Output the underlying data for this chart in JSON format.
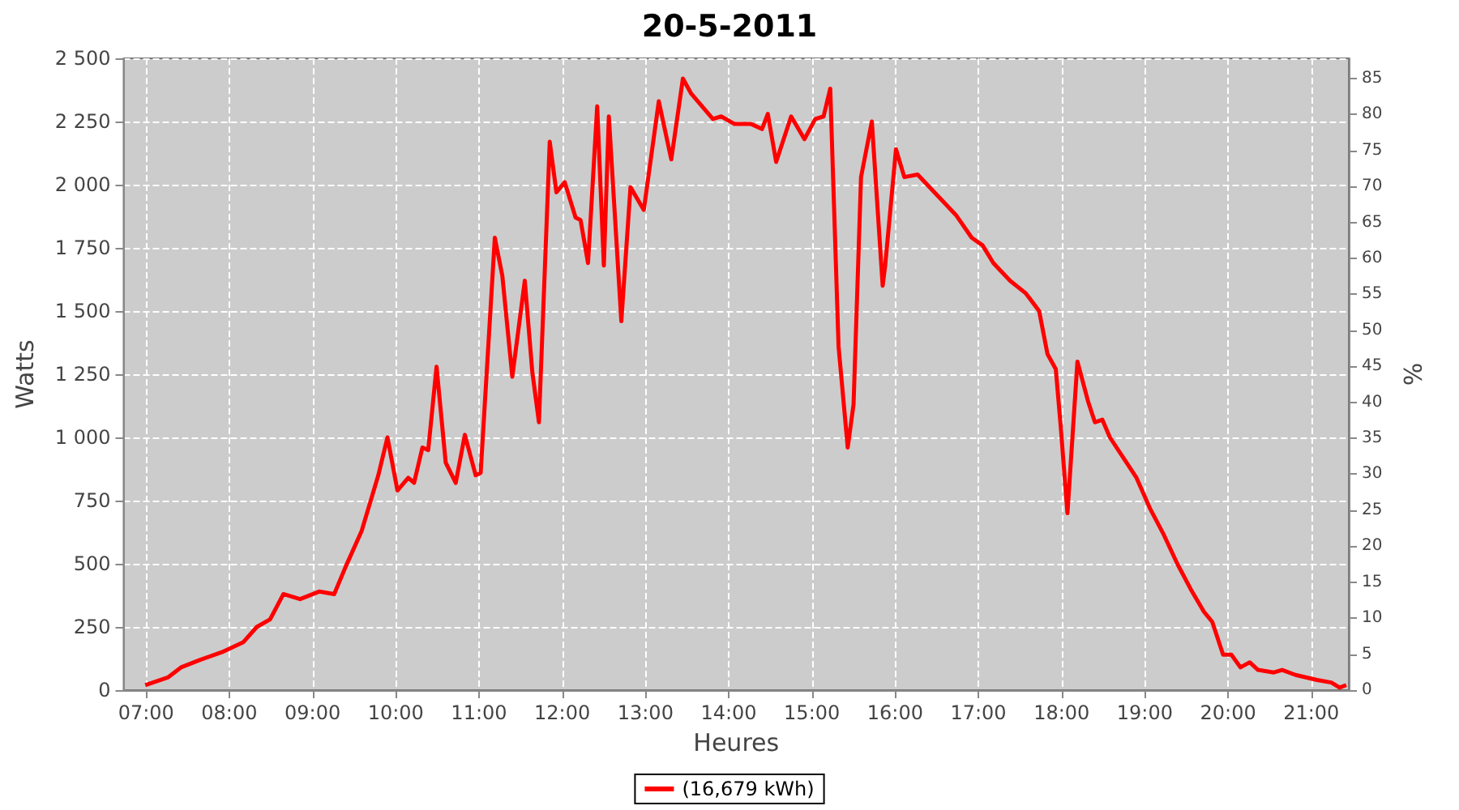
{
  "chart_data": {
    "type": "line",
    "title": "20-5-2011",
    "xlabel": "Heures",
    "ylabel": "Watts",
    "y2label": "%",
    "x": [
      6.99,
      7.26,
      7.42,
      7.65,
      7.91,
      8.17,
      8.33,
      8.49,
      8.65,
      8.85,
      9.08,
      9.26,
      9.4,
      9.59,
      9.79,
      9.9,
      10.02,
      10.15,
      10.22,
      10.32,
      10.39,
      10.49,
      10.6,
      10.72,
      10.83,
      10.96,
      11.02,
      11.19,
      11.28,
      11.4,
      11.55,
      11.64,
      11.72,
      11.85,
      11.93,
      12.03,
      12.16,
      12.22,
      12.31,
      12.42,
      12.5,
      12.56,
      12.71,
      12.82,
      12.98,
      13.16,
      13.31,
      13.45,
      13.55,
      13.81,
      13.91,
      14.07,
      14.27,
      14.4,
      14.47,
      14.57,
      14.75,
      14.91,
      15.04,
      15.14,
      15.22,
      15.32,
      15.43,
      15.5,
      15.59,
      15.72,
      15.85,
      15.88,
      16.01,
      16.11,
      16.27,
      16.5,
      16.73,
      16.92,
      17.05,
      17.18,
      17.38,
      17.57,
      17.73,
      17.83,
      17.93,
      17.99,
      18.07,
      18.19,
      18.32,
      18.4,
      18.49,
      18.58,
      18.74,
      18.9,
      19.06,
      19.22,
      19.39,
      19.55,
      19.71,
      19.81,
      19.94,
      20.04,
      20.15,
      20.26,
      20.36,
      20.55,
      20.65,
      20.81,
      21.07,
      21.24,
      21.34,
      21.42
    ],
    "series": [
      {
        "name": "(16,679 kWh)",
        "color": "#ff0000",
        "values": [
          20,
          50,
          90,
          120,
          150,
          190,
          250,
          280,
          380,
          360,
          390,
          380,
          490,
          630,
          850,
          1000,
          790,
          840,
          820,
          960,
          950,
          1280,
          900,
          820,
          1010,
          850,
          860,
          1790,
          1640,
          1240,
          1620,
          1260,
          1060,
          2170,
          1970,
          2010,
          1870,
          1860,
          1690,
          2310,
          1680,
          2270,
          1460,
          1990,
          1900,
          2330,
          2100,
          2420,
          2360,
          2260,
          2270,
          2240,
          2240,
          2220,
          2280,
          2090,
          2270,
          2180,
          2260,
          2270,
          2380,
          1360,
          960,
          1130,
          2030,
          2250,
          1600,
          1680,
          2140,
          2030,
          2040,
          1960,
          1880,
          1790,
          1760,
          1690,
          1620,
          1570,
          1500,
          1330,
          1270,
          1040,
          700,
          1300,
          1140,
          1060,
          1070,
          1000,
          920,
          840,
          720,
          620,
          500,
          400,
          310,
          270,
          140,
          140,
          90,
          110,
          80,
          70,
          80,
          60,
          40,
          30,
          10,
          20
        ]
      }
    ],
    "xlim": [
      6.73,
      21.45
    ],
    "xticks": [
      {
        "value": 7,
        "label": "07:00"
      },
      {
        "value": 8,
        "label": "08:00"
      },
      {
        "value": 9,
        "label": "09:00"
      },
      {
        "value": 10,
        "label": "10:00"
      },
      {
        "value": 11,
        "label": "11:00"
      },
      {
        "value": 12,
        "label": "12:00"
      },
      {
        "value": 13,
        "label": "13:00"
      },
      {
        "value": 14,
        "label": "14:00"
      },
      {
        "value": 15,
        "label": "15:00"
      },
      {
        "value": 16,
        "label": "16:00"
      },
      {
        "value": 17,
        "label": "17:00"
      },
      {
        "value": 18,
        "label": "18:00"
      },
      {
        "value": 19,
        "label": "19:00"
      },
      {
        "value": 20,
        "label": "20:00"
      },
      {
        "value": 21,
        "label": "21:00"
      }
    ],
    "ylim": [
      0,
      2500
    ],
    "yticks": [
      0,
      250,
      500,
      750,
      {
        "value": 1000,
        "label": "1 000"
      },
      {
        "value": 1250,
        "label": "1 250"
      },
      {
        "value": 1500,
        "label": "1 500"
      },
      {
        "value": 1750,
        "label": "1 750"
      },
      {
        "value": 2000,
        "label": "2 000"
      },
      {
        "value": 2250,
        "label": "2 250"
      },
      {
        "value": 2500,
        "label": "2 500"
      }
    ],
    "y2lim": [
      0,
      87.8
    ],
    "y2ticks": [
      0,
      5,
      10,
      15,
      20,
      25,
      30,
      35,
      40,
      45,
      50,
      55,
      60,
      65,
      70,
      75,
      80,
      85
    ],
    "grid": true,
    "legend": "bottom",
    "marker": "none",
    "line_style": "solid"
  }
}
